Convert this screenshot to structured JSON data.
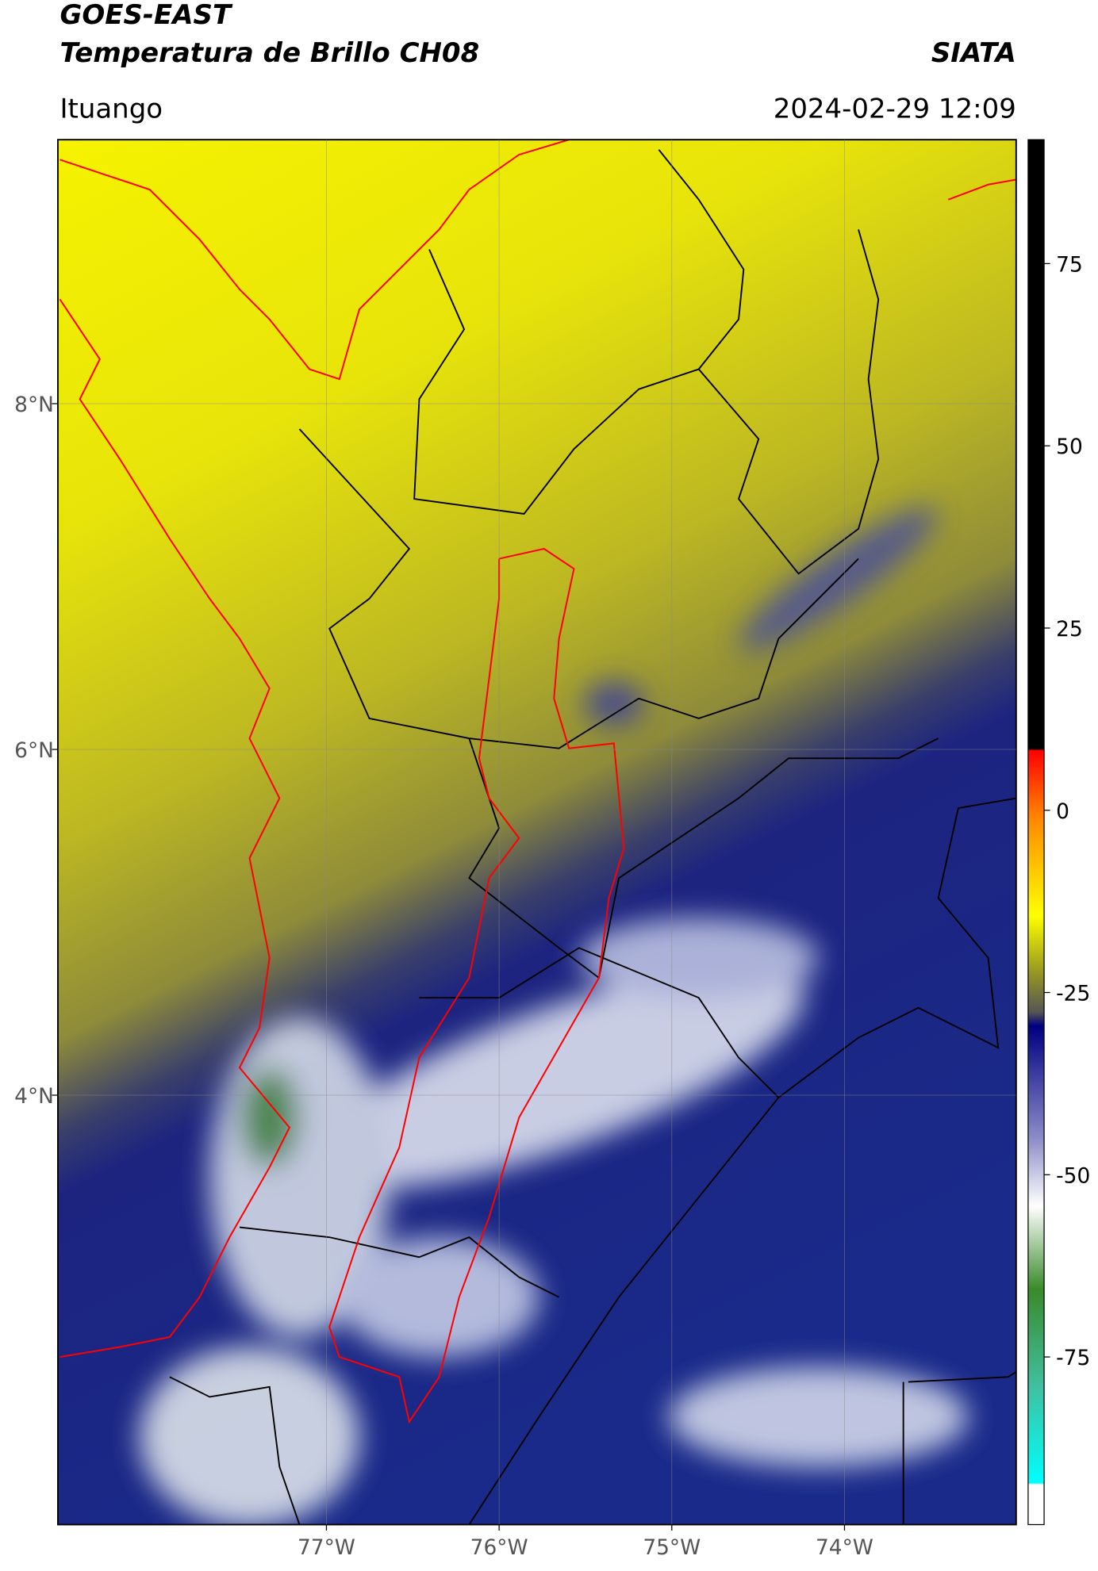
{
  "chart_data": {
    "type": "map",
    "title": "GOES-EAST",
    "subtitle": "Temperatura de Brillo CH08",
    "source": "SIATA",
    "location": "Ituango",
    "datetime": "2024-02-29 12:09",
    "xlim": [
      -78.555,
      -73.006
    ],
    "ylim": [
      1.516,
      9.527
    ],
    "xticks": [
      {
        "value": -77,
        "label": "77°W"
      },
      {
        "value": -76,
        "label": "76°W"
      },
      {
        "value": -75,
        "label": "75°W"
      },
      {
        "value": -74,
        "label": "74°W"
      }
    ],
    "yticks": [
      {
        "value": 8,
        "label": "8°N"
      },
      {
        "value": 6,
        "label": "6°N"
      },
      {
        "value": 4,
        "label": "4°N"
      }
    ],
    "grid": true,
    "colorbar": {
      "lim": [
        -98,
        92
      ],
      "ticks": [
        75,
        50,
        25,
        0,
        -25,
        -50,
        -75
      ]
    }
  }
}
